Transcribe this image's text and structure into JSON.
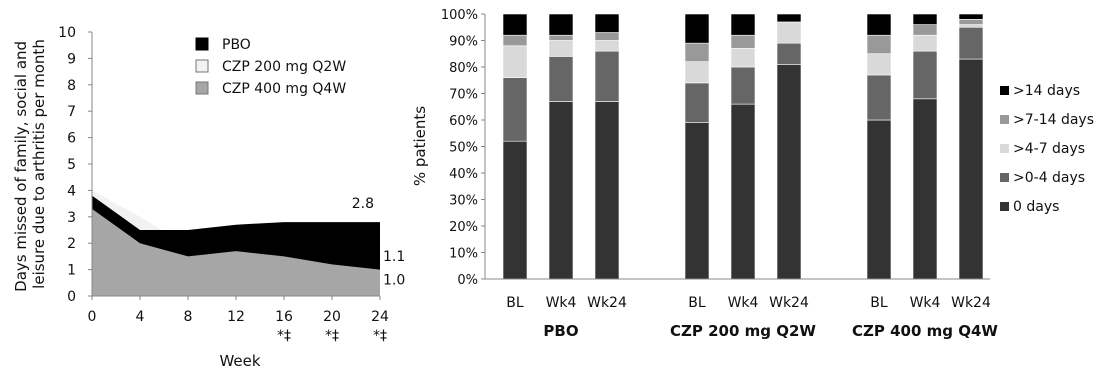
{
  "colors": {
    "pbo": "#000000",
    "czp200": "#f2f2f2",
    "czp400": "#a6a6a6",
    "cat_gt14": "#000000",
    "cat_7_14": "#999999",
    "cat_4_7": "#d9d9d9",
    "cat_0_4": "#666666",
    "cat_0": "#333333"
  },
  "chart_data": [
    {
      "type": "area",
      "xlabel": "Week",
      "ylabel": "Days missed of family, social and leisure due to arthritis per month",
      "x": [
        0,
        4,
        8,
        12,
        16,
        20,
        24
      ],
      "xlim": [
        0,
        24
      ],
      "ylim": [
        0,
        10
      ],
      "yticks": [
        0,
        1,
        2,
        3,
        4,
        5,
        6,
        7,
        8,
        9,
        10
      ],
      "x_tick_annotations": [
        {
          "x": 16,
          "text": "*‡"
        },
        {
          "x": 20,
          "text": "*‡"
        },
        {
          "x": 24,
          "text": "*‡"
        }
      ],
      "series": [
        {
          "name": "PBO",
          "color_key": "pbo",
          "values": [
            3.8,
            2.5,
            2.5,
            2.7,
            2.8,
            2.8,
            2.8
          ]
        },
        {
          "name": "CZP 200 mg Q2W",
          "color_key": "czp200",
          "values": [
            4.0,
            3.0,
            1.9,
            1.8,
            1.4,
            1.3,
            1.1
          ]
        },
        {
          "name": "CZP 400 mg Q4W",
          "color_key": "czp400",
          "values": [
            3.3,
            2.0,
            1.5,
            1.7,
            1.5,
            1.2,
            1.0
          ]
        }
      ],
      "end_labels": [
        {
          "series": "PBO",
          "text": "2.8"
        },
        {
          "series": "CZP 200 mg Q2W",
          "text": "1.1"
        },
        {
          "series": "CZP 400 mg Q4W",
          "text": "1.0"
        }
      ],
      "legend": "top-right",
      "grid": false
    },
    {
      "type": "bar",
      "stacked": true,
      "ylabel": "% patients",
      "ylim": [
        0,
        100
      ],
      "yticks": [
        "0%",
        "10%",
        "20%",
        "30%",
        "40%",
        "50%",
        "60%",
        "70%",
        "80%",
        "90%",
        "100%"
      ],
      "groups": [
        {
          "name": "PBO",
          "categories": [
            "BL",
            "Wk4",
            "Wk24"
          ]
        },
        {
          "name": "CZP 200 mg Q2W",
          "categories": [
            "BL",
            "Wk4",
            "Wk24"
          ]
        },
        {
          "name": "CZP 400 mg Q4W",
          "categories": [
            "BL",
            "Wk4",
            "Wk24"
          ]
        }
      ],
      "series": [
        {
          "name": "0 days",
          "color_key": "cat_0",
          "values": [
            52,
            67,
            67,
            59,
            66,
            81,
            60,
            68,
            83
          ]
        },
        {
          "name": ">0-4 days",
          "color_key": "cat_0_4",
          "values": [
            24,
            17,
            19,
            15,
            14,
            8,
            17,
            18,
            12
          ]
        },
        {
          "name": ">4-7 days",
          "color_key": "cat_4_7",
          "values": [
            12,
            6,
            4,
            8,
            7,
            8,
            8,
            6,
            1
          ]
        },
        {
          "name": ">7-14 days",
          "color_key": "cat_7_14",
          "values": [
            4,
            2,
            3,
            7,
            5,
            0,
            7,
            4,
            2
          ]
        },
        {
          "name": ">14 days",
          "color_key": "cat_gt14",
          "values": [
            8,
            8,
            7,
            11,
            8,
            3,
            8,
            4,
            2
          ]
        }
      ],
      "legend": "right",
      "grid": false
    }
  ]
}
